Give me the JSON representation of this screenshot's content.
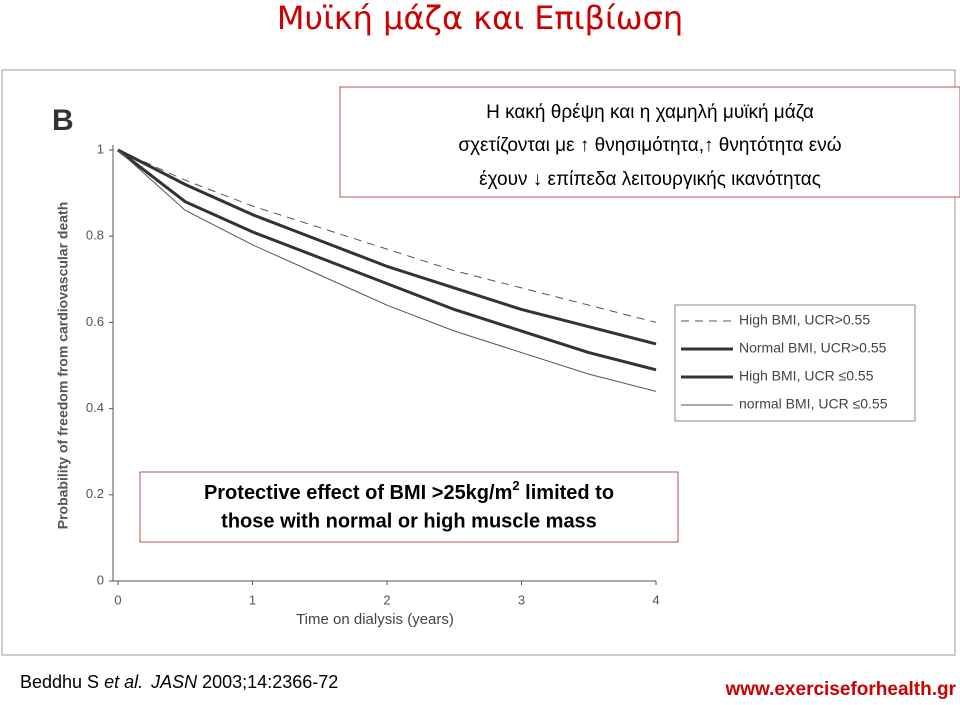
{
  "slide_title": "Μυϊκή μάζα και Επιβίωση",
  "top_box": {
    "lines": [
      "Η κακή θρέψη και η χαμηλή μυϊκή μάζα",
      "σχετίζονται με ↑ θνησιμότητα,↑ θνητότητα ενώ",
      "έχουν ↓ επίπεδα λειτουργικής ικανότητας"
    ]
  },
  "bottom_box": {
    "line1": [
      "Protective effect of BMI >25kg/m",
      "2",
      " limited to"
    ],
    "line2": "those with normal or high muscle mass"
  },
  "citation": {
    "authors": "Beddhu S ",
    "etal": "et al.",
    "journal": "JASN",
    "ref": " 2003;14:2366-72"
  },
  "website": "www.exerciseforhealth.gr",
  "chart_data": {
    "type": "line",
    "panel_label": "B",
    "x_label": "Time on dialysis (years)",
    "y_label": "Probability of freedom from cardiovascular death",
    "x": [
      0,
      0.5,
      1,
      1.5,
      2,
      2.5,
      3,
      3.5,
      4
    ],
    "xlim": [
      0,
      4
    ],
    "xticks": [
      0,
      1,
      2,
      3,
      4
    ],
    "ylim": [
      0,
      1
    ],
    "yticks": [
      0,
      0.2,
      0.4,
      0.6,
      0.8,
      1
    ],
    "legend": "right",
    "series": [
      {
        "name": "High BMI, UCR>0.55",
        "color": "#555555",
        "line_style": "dashed",
        "line_width": 1,
        "values": [
          1,
          0.93,
          0.87,
          0.82,
          0.77,
          0.72,
          0.68,
          0.64,
          0.6
        ]
      },
      {
        "name": "Normal BMI, UCR>0.55",
        "color": "#333333",
        "line_style": "solid",
        "line_width": 3,
        "values": [
          1,
          0.92,
          0.85,
          0.79,
          0.73,
          0.68,
          0.63,
          0.59,
          0.55
        ]
      },
      {
        "name": "High BMI, UCR ≤0.55",
        "color": "#333333",
        "line_style": "solid",
        "line_width": 3,
        "values": [
          1,
          0.88,
          0.81,
          0.75,
          0.69,
          0.63,
          0.58,
          0.53,
          0.49
        ]
      },
      {
        "name": "normal BMI, UCR ≤0.55",
        "color": "#555555",
        "line_style": "solid",
        "line_width": 1,
        "values": [
          1,
          0.86,
          0.78,
          0.71,
          0.64,
          0.58,
          0.53,
          0.48,
          0.44
        ]
      }
    ]
  }
}
